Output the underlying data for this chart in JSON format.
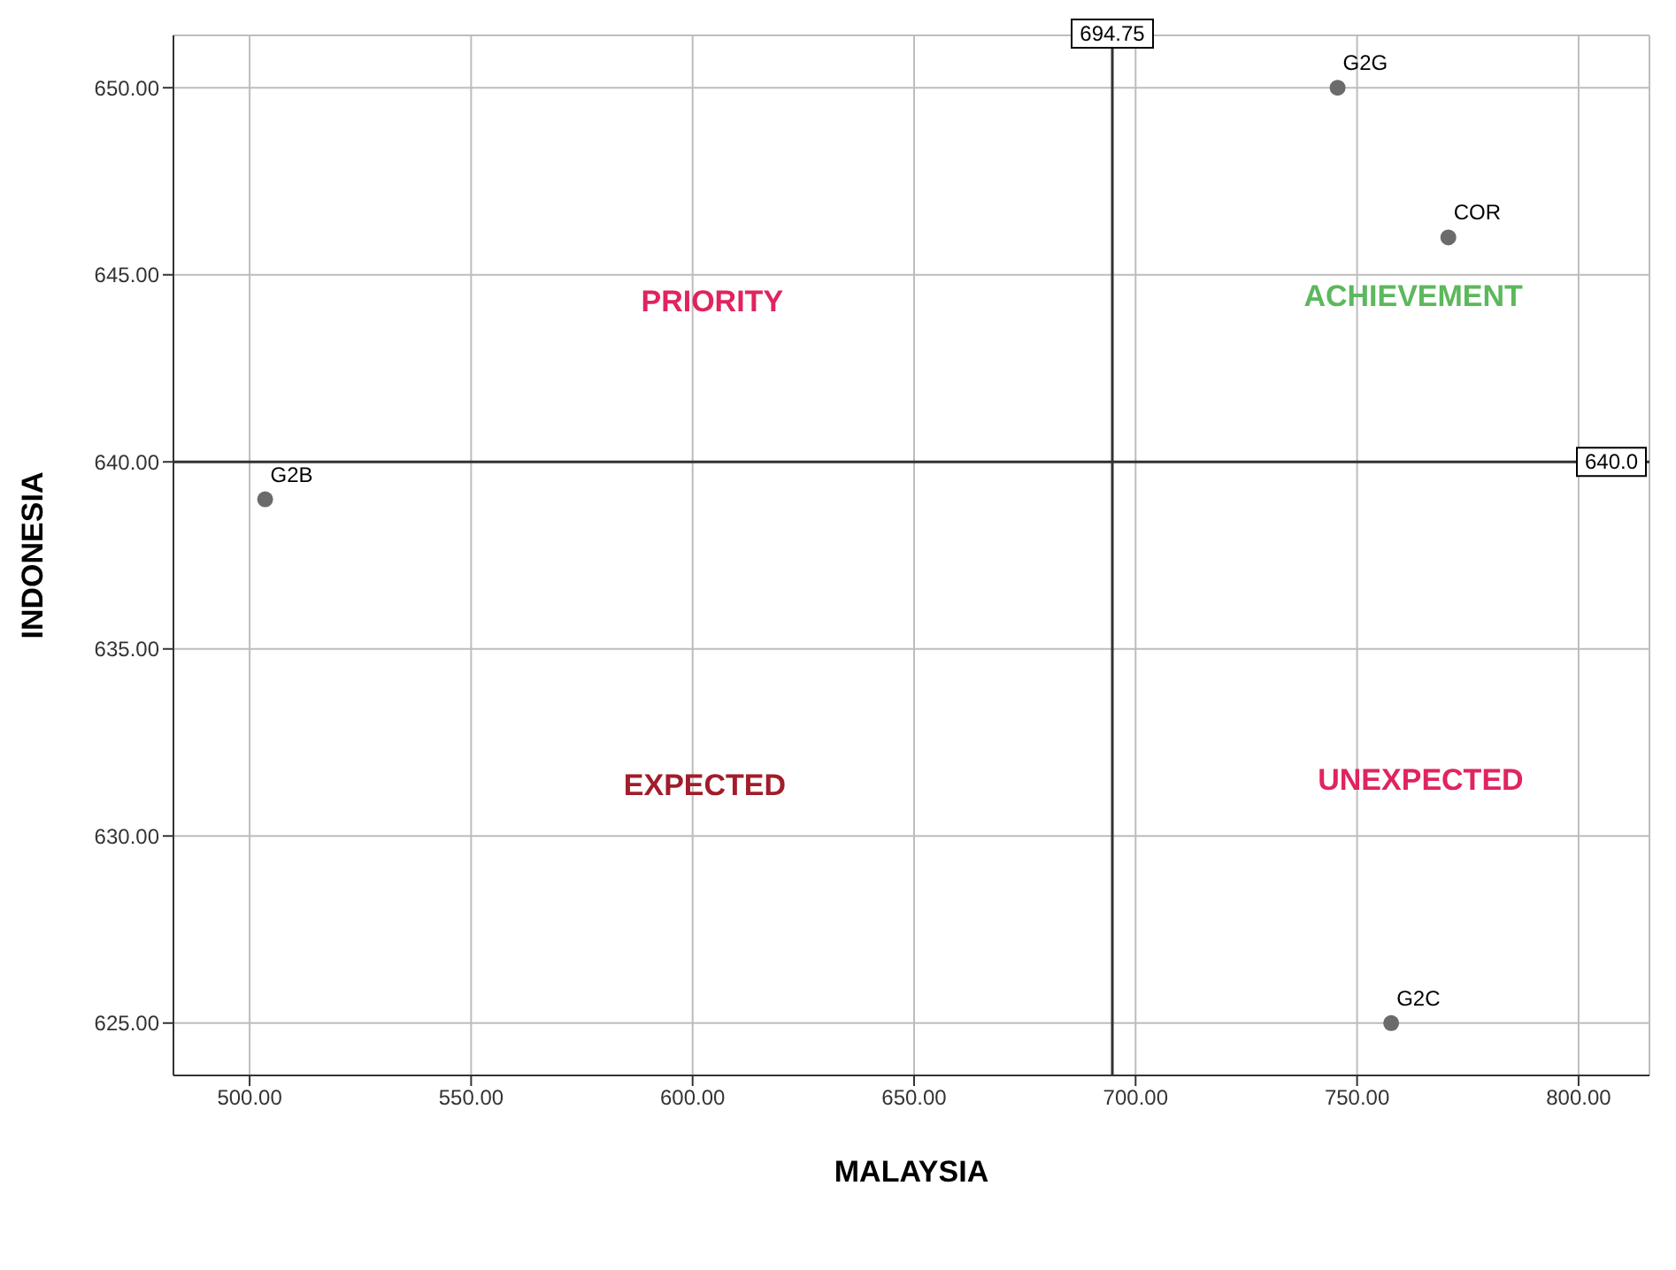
{
  "chart_data": {
    "type": "scatter",
    "xlabel": "MALAYSIA",
    "ylabel": "INDONESIA",
    "x": [
      745.6,
      770.6,
      503.5,
      757.7
    ],
    "series": [
      {
        "color": "#6b6b6b",
        "values": [
          650.0,
          646.0,
          639.0,
          625.0
        ]
      }
    ],
    "marker": "circle",
    "xlim": [
      482.8,
      816
    ],
    "xticks": [
      {
        "value": 500,
        "label": "500.00"
      },
      {
        "value": 550,
        "label": "550.00"
      },
      {
        "value": 600,
        "label": "600.00"
      },
      {
        "value": 650,
        "label": "650.00"
      },
      {
        "value": 700,
        "label": "700.00"
      },
      {
        "value": 750,
        "label": "750.00"
      },
      {
        "value": 800,
        "label": "800.00"
      }
    ],
    "ylim": [
      623.6,
      651.4
    ],
    "yticks": [
      {
        "value": 625,
        "label": "625.00"
      },
      {
        "value": 630,
        "label": "630.00"
      },
      {
        "value": 635,
        "label": "635.00"
      },
      {
        "value": 640,
        "label": "640.00"
      },
      {
        "value": 645,
        "label": "645.00"
      },
      {
        "value": 650,
        "label": "650.00"
      }
    ],
    "grid": true,
    "ref_lines": [
      {
        "axis": "x",
        "value": 694.75,
        "label": "694.75",
        "color": "#333333"
      },
      {
        "axis": "y",
        "value": 640,
        "label": "640.0",
        "color": "#333333"
      }
    ],
    "annotations": [
      {
        "text": "G2G",
        "x": 745.6,
        "y": 650.0
      },
      {
        "text": "COR",
        "x": 770.6,
        "y": 646.0
      },
      {
        "text": "G2B",
        "x": 503.5,
        "y": 639.0
      },
      {
        "text": "G2C",
        "x": 757.7,
        "y": 625.0
      },
      "PRIORITY",
      "ACHIEVEMENT",
      "EXPECTED",
      "UNEXPECTED"
    ]
  }
}
